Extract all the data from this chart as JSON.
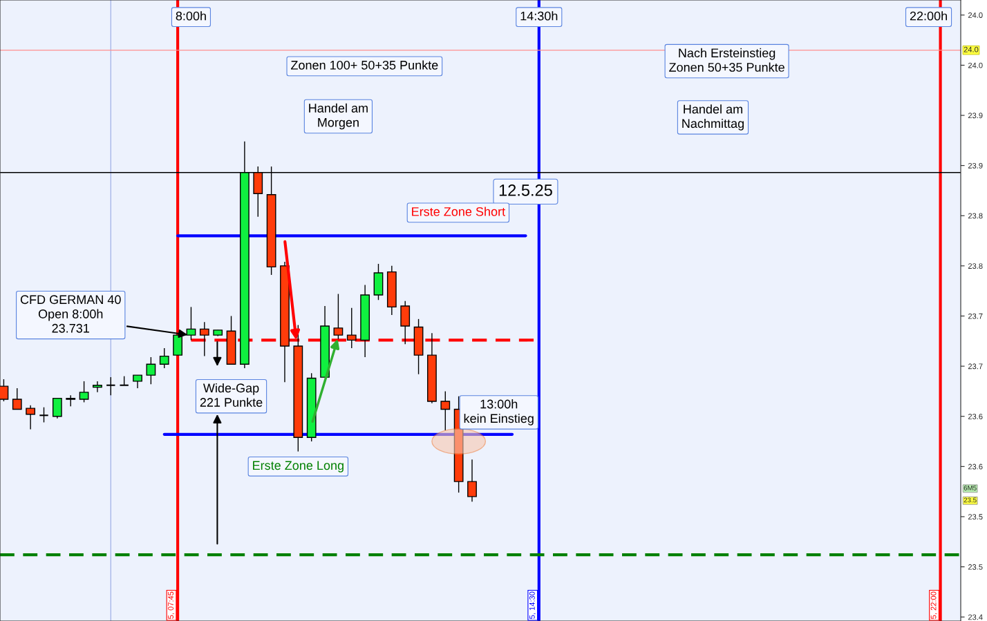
{
  "chart_data": {
    "type": "candlestick",
    "x": [
      4.5,
      4.75,
      5.0,
      5.25,
      5.5,
      5.75,
      6.0,
      6.25,
      6.5,
      6.75,
      7.0,
      7.25,
      7.5,
      7.75,
      8.0,
      8.25,
      8.5,
      8.75,
      9.0,
      9.25,
      9.5,
      9.75,
      10.0,
      10.25,
      10.5,
      10.75,
      11.0,
      11.25,
      11.5,
      11.75,
      12.0,
      12.25,
      12.5,
      12.75,
      13.0,
      13.25
    ],
    "ohlc": [
      [
        23.68,
        23.687,
        23.665,
        23.667
      ],
      [
        23.667,
        23.678,
        23.657,
        23.657
      ],
      [
        23.658,
        23.661,
        23.637,
        23.652
      ],
      [
        23.651,
        23.659,
        23.644,
        23.651
      ],
      [
        23.65,
        23.668,
        23.648,
        23.668
      ],
      [
        23.668,
        23.671,
        23.66,
        23.667
      ],
      [
        23.667,
        23.685,
        23.664,
        23.674
      ],
      [
        23.679,
        23.685,
        23.674,
        23.681
      ],
      [
        23.681,
        23.689,
        23.671,
        23.681
      ],
      [
        23.681,
        23.69,
        23.681,
        23.681
      ],
      [
        23.685,
        23.691,
        23.678,
        23.691
      ],
      [
        23.691,
        23.709,
        23.682,
        23.702
      ],
      [
        23.702,
        23.718,
        23.698,
        23.71
      ],
      [
        23.711,
        23.731,
        23.711,
        23.731
      ],
      [
        23.731,
        23.759,
        23.726,
        23.737
      ],
      [
        23.737,
        23.744,
        23.71,
        23.731
      ],
      [
        23.731,
        23.736,
        23.73,
        23.736
      ],
      [
        23.735,
        23.75,
        23.702,
        23.702
      ],
      [
        23.702,
        23.924,
        23.698,
        23.893
      ],
      [
        23.893,
        23.899,
        23.849,
        23.872
      ],
      [
        23.871,
        23.899,
        23.791,
        23.799
      ],
      [
        23.8,
        23.804,
        23.684,
        23.72
      ],
      [
        23.72,
        23.741,
        23.615,
        23.629
      ],
      [
        23.629,
        23.693,
        23.625,
        23.688
      ],
      [
        23.689,
        23.76,
        23.689,
        23.74
      ],
      [
        23.738,
        23.772,
        23.727,
        23.731
      ],
      [
        23.731,
        23.758,
        23.718,
        23.726
      ],
      [
        23.726,
        23.781,
        23.709,
        23.771
      ],
      [
        23.771,
        23.802,
        23.766,
        23.793
      ],
      [
        23.794,
        23.8,
        23.751,
        23.759
      ],
      [
        23.76,
        23.765,
        23.722,
        23.74
      ],
      [
        23.739,
        23.747,
        23.692,
        23.711
      ],
      [
        23.711,
        23.733,
        23.663,
        23.665
      ],
      [
        23.665,
        23.675,
        23.636,
        23.657
      ],
      [
        23.657,
        23.67,
        23.574,
        23.585
      ],
      [
        23.585,
        23.607,
        23.565,
        23.57
      ]
    ],
    "colors": [
      "#ff3c0a",
      "#ff3c0a",
      "#ff3c0a",
      "#000000",
      "#10f040",
      "#ff3c0a",
      "#10f040",
      "#10f040",
      "#000000",
      "#000000",
      "#10f040",
      "#10f040",
      "#10f040",
      "#10f040",
      "#10f040",
      "#ff3c0a",
      "#10f040",
      "#ff3c0a",
      "#10f040",
      "#ff3c0a",
      "#ff3c0a",
      "#ff3c0a",
      "#ff3c0a",
      "#10f040",
      "#10f040",
      "#ff3c0a",
      "#ff3c0a",
      "#10f040",
      "#10f040",
      "#ff3c0a",
      "#ff3c0a",
      "#ff3c0a",
      "#ff3c0a",
      "#ff3c0a",
      "#ff3c0a",
      "#ff3c0a"
    ],
    "series": [
      {
        "type": "line",
        "x": [
          7.75,
          14.25
        ],
        "values": [
          23.83,
          23.83
        ],
        "color": "#0000ff",
        "line_style": "solid"
      },
      {
        "type": "line",
        "x": [
          7.5,
          14.0
        ],
        "values": [
          23.632,
          23.632
        ],
        "color": "#0000ff",
        "line_style": "solid"
      },
      {
        "type": "line",
        "x": [
          8.0,
          14.4
        ],
        "values": [
          23.726,
          23.726
        ],
        "color": "#ff0000",
        "line_style": "dashed"
      }
    ],
    "ref_lines": [
      {
        "axis": "x",
        "value": 7.75,
        "color": "#ff0000",
        "line_style": "solid"
      },
      {
        "axis": "x",
        "value": 14.5,
        "label": "5, 14:30",
        "color": "#0000ff",
        "line_style": "solid"
      },
      {
        "axis": "x",
        "value": 22.0,
        "label": "5, 22:00",
        "color": "#ff0000",
        "line_style": "solid"
      },
      {
        "axis": "x",
        "value": 6.5,
        "color": "#a8b8e8",
        "line_style": "solid"
      },
      {
        "axis": "y",
        "value": 23.893,
        "color": "#000000",
        "line_style": "solid"
      },
      {
        "axis": "y",
        "value": 24.015,
        "label": "24.0",
        "color": "#ff9090",
        "line_style": "solid"
      },
      {
        "axis": "y",
        "value": 23.512,
        "color": "#008000",
        "line_style": "dashed"
      }
    ],
    "annotations": [
      "8:00h",
      "14:30h",
      "22:00h",
      "Zonen 100+ 50+35 Punkte",
      "Handel am\nMorgen",
      "Nach Ersteinstieg\nZonen 50+35 Punkte",
      "Handel am\nNachmittag",
      "12.5.25",
      "Erste Zone Short",
      "CFD GERMAN 40\nOpen 8:00h\n23.731",
      "Wide-Gap\n221 Punkte",
      "Erste Zone Long",
      "13:00h\nkein Einstieg",
      "6M5",
      "23.5",
      "5, 07:45"
    ],
    "xlim": [
      4.43,
      22.38
    ],
    "ylim": [
      23.446,
      24.065
    ],
    "tick_labels": "y",
    "yticks": [
      {
        "value": 24.05,
        "label": "24.0"
      },
      {
        "value": 24.0,
        "label": "24.0"
      },
      {
        "value": 23.95,
        "label": "23.9"
      },
      {
        "value": 23.9,
        "label": "23.9"
      },
      {
        "value": 23.85,
        "label": "23.8"
      },
      {
        "value": 23.8,
        "label": "23.8"
      },
      {
        "value": 23.75,
        "label": "23.7"
      },
      {
        "value": 23.7,
        "label": "23.7"
      },
      {
        "value": 23.65,
        "label": "23.6"
      },
      {
        "value": 23.6,
        "label": "23.6"
      },
      {
        "value": 23.55,
        "label": "23.5"
      },
      {
        "value": 23.5,
        "label": "23.5"
      },
      {
        "value": 23.45,
        "label": "23.4"
      }
    ],
    "grid": false,
    "legend": false
  }
}
